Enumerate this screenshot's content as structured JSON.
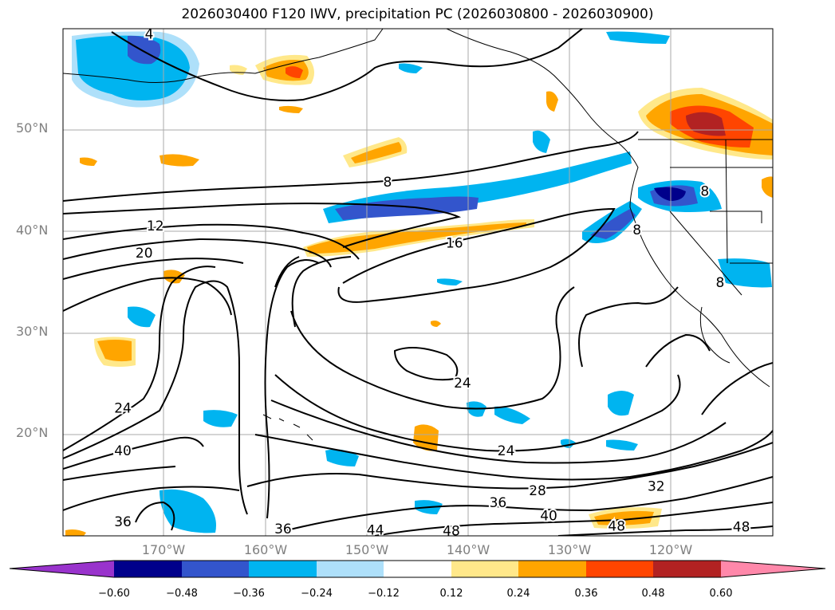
{
  "title": "2026030400 F120 IWV, precipitation PC (2026030800 - 2026030900)",
  "map": {
    "region": "North Pacific / West coast of North America",
    "extent": {
      "lon": [
        -180,
        -110
      ],
      "lat": [
        10,
        60
      ]
    },
    "grid": true,
    "lat_ticks": [
      {
        "value": 20,
        "label": "20°N"
      },
      {
        "value": 30,
        "label": "30°N"
      },
      {
        "value": 40,
        "label": "40°N"
      },
      {
        "value": 50,
        "label": "50°N"
      }
    ],
    "lon_ticks": [
      {
        "value": -170,
        "label": "170°W"
      },
      {
        "value": -160,
        "label": "160°W"
      },
      {
        "value": -150,
        "label": "150°W"
      },
      {
        "value": -140,
        "label": "140°W"
      },
      {
        "value": -130,
        "label": "130°W"
      },
      {
        "value": -120,
        "label": "120°W"
      }
    ],
    "contour_labels": [
      {
        "lon": -171.5,
        "lat": 59.5,
        "text": "4"
      },
      {
        "lon": -148,
        "lat": 44.9,
        "text": "8"
      },
      {
        "lon": -170.9,
        "lat": 40.6,
        "text": "12"
      },
      {
        "lon": -172,
        "lat": 37.9,
        "text": "20"
      },
      {
        "lon": -141.4,
        "lat": 38.9,
        "text": "16"
      },
      {
        "lon": -174.1,
        "lat": 22.6,
        "text": "24"
      },
      {
        "lon": -174.1,
        "lat": 18.4,
        "text": "40"
      },
      {
        "lon": -140.6,
        "lat": 25.1,
        "text": "24"
      },
      {
        "lon": -136.3,
        "lat": 18.4,
        "text": "24"
      },
      {
        "lon": -133.2,
        "lat": 14.5,
        "text": "28"
      },
      {
        "lon": -137.1,
        "lat": 13.3,
        "text": "36"
      },
      {
        "lon": -121.5,
        "lat": 14.9,
        "text": "32"
      },
      {
        "lon": -132.1,
        "lat": 12.0,
        "text": "40"
      },
      {
        "lon": -125.4,
        "lat": 11.0,
        "text": "48"
      },
      {
        "lon": -174.1,
        "lat": 11.4,
        "text": "36"
      },
      {
        "lon": -158.3,
        "lat": 10.7,
        "text": "36"
      },
      {
        "lon": -149.2,
        "lat": 10.6,
        "text": "44"
      },
      {
        "lon": -141.7,
        "lat": 10.5,
        "text": "48"
      },
      {
        "lon": -113.1,
        "lat": 10.9,
        "text": "48"
      },
      {
        "lon": -116.7,
        "lat": 44.0,
        "text": "8"
      },
      {
        "lon": -123.4,
        "lat": 40.2,
        "text": "8"
      },
      {
        "lon": -115.2,
        "lat": 35.0,
        "text": "8"
      }
    ]
  },
  "colorbar": {
    "tick_labels": [
      "−0.60",
      "−0.48",
      "−0.36",
      "−0.24",
      "−0.12",
      "0.12",
      "0.24",
      "0.36",
      "0.48",
      "0.60"
    ],
    "colors": [
      "#9933cc",
      "#00008b",
      "#3355cc",
      "#00b4f0",
      "#aee0fa",
      "#ffffff",
      "#ffe88a",
      "#ffa500",
      "#ff4500",
      "#b22222",
      "#ff88aa"
    ]
  }
}
